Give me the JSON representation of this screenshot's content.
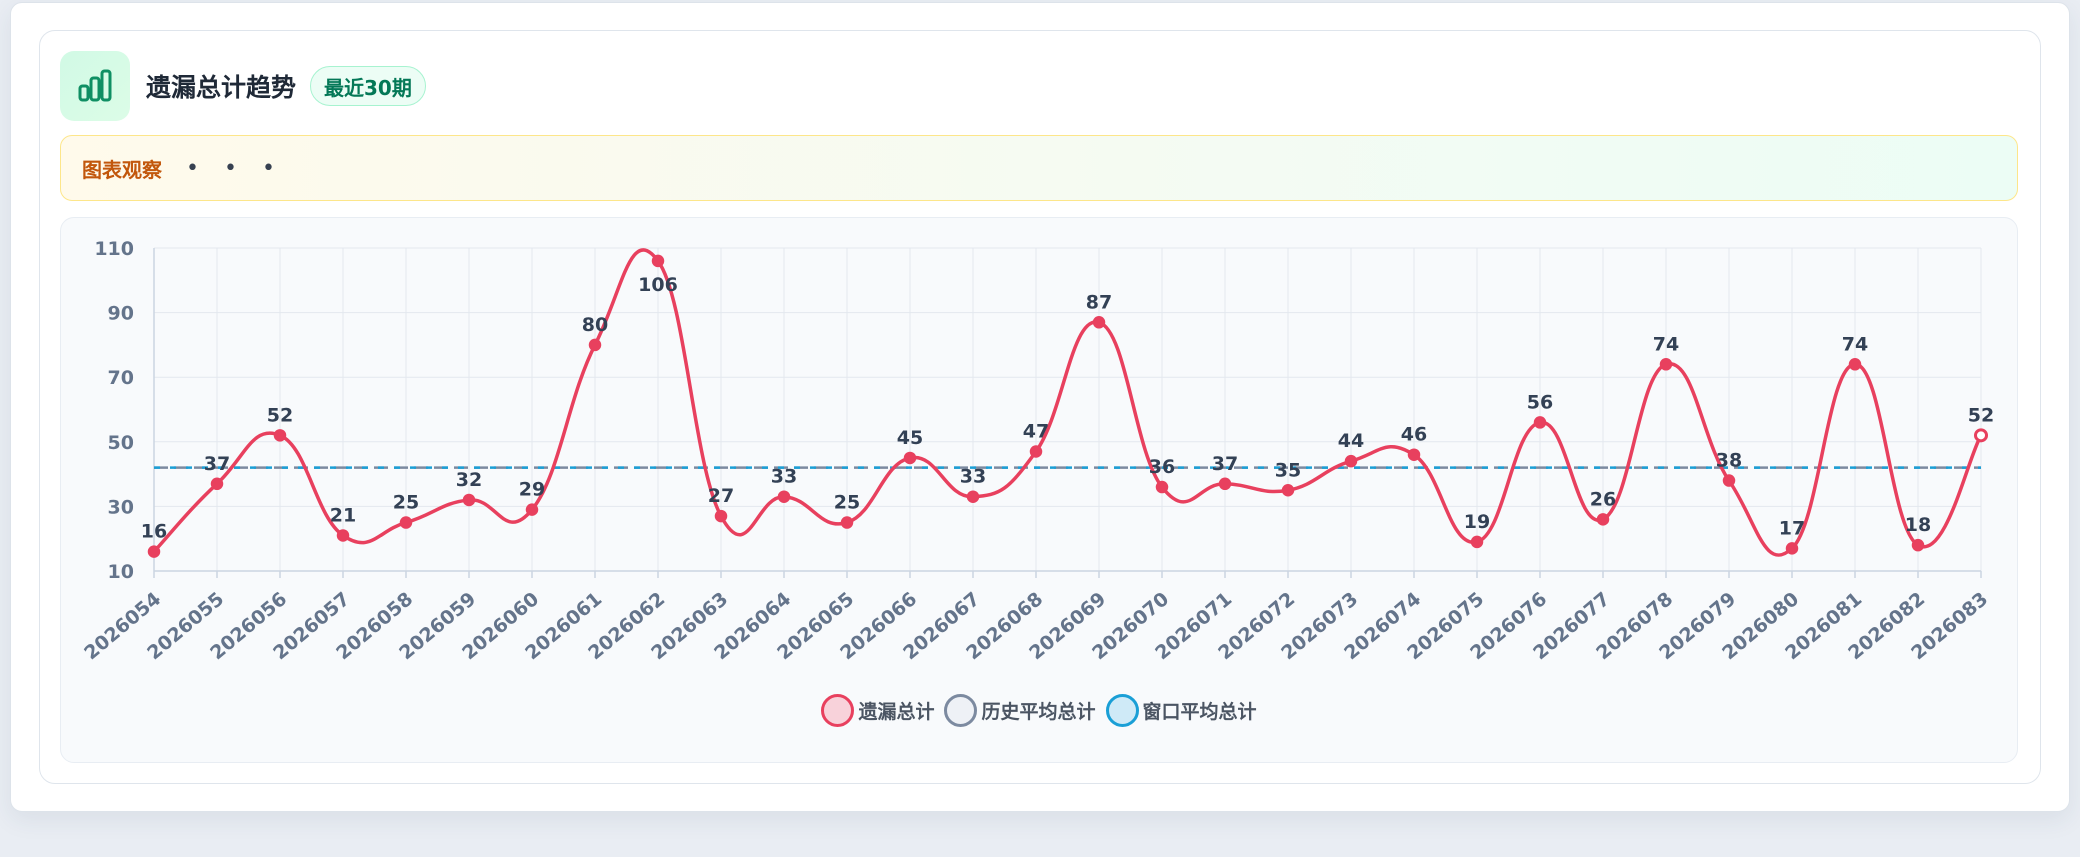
{
  "header": {
    "title": "遗漏总计趋势",
    "badge": "最近30期",
    "icon": "bar-chart-icon"
  },
  "observation": {
    "label": "图表观察",
    "dots": "• • •"
  },
  "colors": {
    "series_total": "#e8405e",
    "series_history": "#7c8aa0",
    "series_window": "#1a9fd6",
    "accent": "#10b981"
  },
  "chart_data": {
    "type": "line",
    "categories": [
      "2026054",
      "2026055",
      "2026056",
      "2026057",
      "2026058",
      "2026059",
      "2026060",
      "2026061",
      "2026062",
      "2026063",
      "2026064",
      "2026065",
      "2026066",
      "2026067",
      "2026068",
      "2026069",
      "2026070",
      "2026071",
      "2026072",
      "2026073",
      "2026074",
      "2026075",
      "2026076",
      "2026077",
      "2026078",
      "2026079",
      "2026080",
      "2026081",
      "2026082",
      "2026083"
    ],
    "series": [
      {
        "name": "遗漏总计",
        "values": [
          16,
          37,
          52,
          21,
          25,
          32,
          29,
          80,
          106,
          27,
          33,
          25,
          45,
          33,
          47,
          87,
          36,
          37,
          35,
          44,
          46,
          19,
          56,
          26,
          74,
          38,
          17,
          74,
          18,
          52
        ],
        "smooth": true,
        "data_labels": true
      },
      {
        "name": "历史平均总计",
        "values": [
          42,
          42,
          42,
          42,
          42,
          42,
          42,
          42,
          42,
          42,
          42,
          42,
          42,
          42,
          42,
          42,
          42,
          42,
          42,
          42,
          42,
          42,
          42,
          42,
          42,
          42,
          42,
          42,
          42,
          42
        ],
        "style": "dashed"
      },
      {
        "name": "窗口平均总计",
        "values": [
          42,
          42,
          42,
          42,
          42,
          42,
          42,
          42,
          42,
          42,
          42,
          42,
          42,
          42,
          42,
          42,
          42,
          42,
          42,
          42,
          42,
          42,
          42,
          42,
          42,
          42,
          42,
          42,
          42,
          42
        ],
        "style": "dashed"
      }
    ],
    "y_ticks": [
      10,
      30,
      50,
      70,
      90,
      110
    ],
    "ylim": [
      10,
      110
    ],
    "grid": true,
    "legend_position": "bottom-center"
  }
}
